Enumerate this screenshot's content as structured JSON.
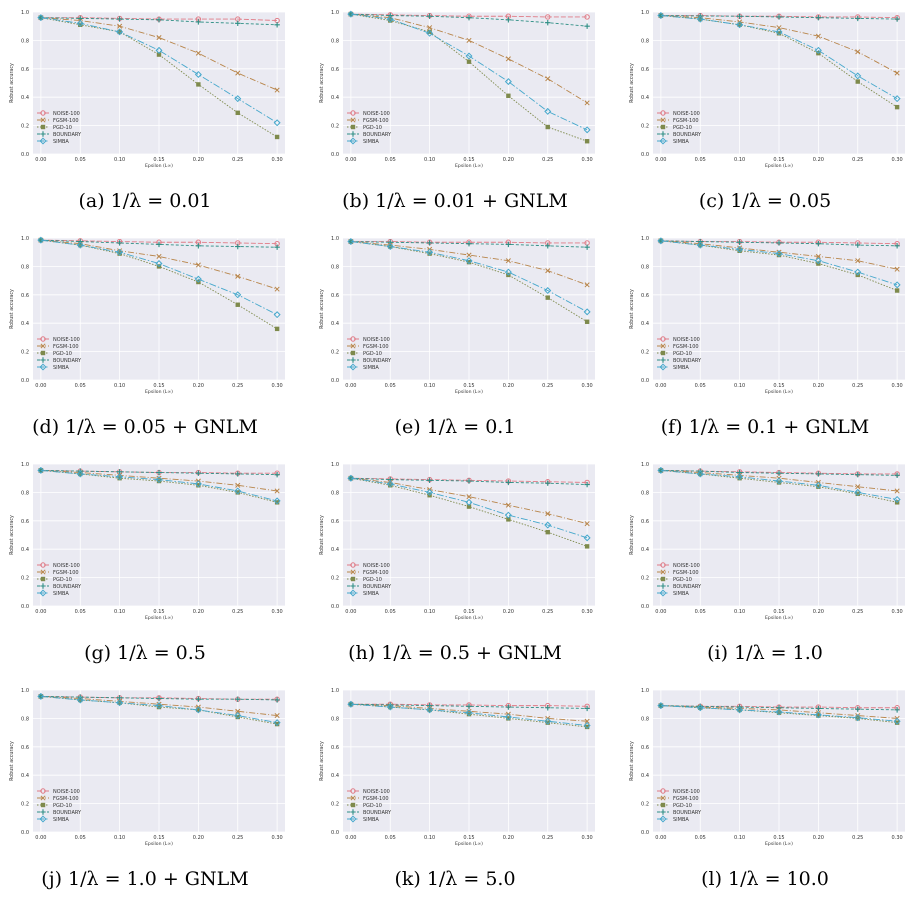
{
  "colors": {
    "plot_background": "#eaeaf2",
    "grid": "#ffffff",
    "NOISE-100": "#e07a85",
    "FGSM-100": "#b8854a",
    "PGD-10": "#7e8a4c",
    "BOUNDARY": "#2f8f85",
    "SIMBA": "#46a8cc"
  },
  "chart_data": [
    {
      "type": "line",
      "caption": "(a) 1/λ = 0.01",
      "xlabel": "Epsilon (L∞)",
      "ylabel": "Robust accuracy",
      "x": [
        0.0,
        0.05,
        0.1,
        0.15,
        0.2,
        0.25,
        0.3
      ],
      "xlim": [
        -0.01,
        0.31
      ],
      "ylim": [
        0.0,
        1.0
      ],
      "grid": true,
      "legend": "lower-left",
      "series": [
        {
          "name": "NOISE-100",
          "marker": "o",
          "values": [
            0.96,
            0.96,
            0.955,
            0.95,
            0.95,
            0.95,
            0.94
          ]
        },
        {
          "name": "FGSM-100",
          "marker": "x",
          "values": [
            0.96,
            0.94,
            0.9,
            0.82,
            0.71,
            0.57,
            0.45
          ]
        },
        {
          "name": "PGD-10",
          "marker": "s",
          "values": [
            0.96,
            0.91,
            0.86,
            0.7,
            0.49,
            0.29,
            0.12
          ]
        },
        {
          "name": "BOUNDARY",
          "marker": "+",
          "values": [
            0.96,
            0.955,
            0.95,
            0.945,
            0.93,
            0.92,
            0.91
          ]
        },
        {
          "name": "SIMBA",
          "marker": "D",
          "values": [
            0.96,
            0.92,
            0.86,
            0.73,
            0.56,
            0.39,
            0.22
          ]
        }
      ]
    },
    {
      "type": "line",
      "caption": "(b) 1/λ = 0.01 + GNLM",
      "xlabel": "Epsilon (L∞)",
      "ylabel": "Robust accuracy",
      "x": [
        0.0,
        0.05,
        0.1,
        0.15,
        0.2,
        0.25,
        0.3
      ],
      "xlim": [
        -0.01,
        0.31
      ],
      "ylim": [
        0.0,
        1.0
      ],
      "grid": true,
      "legend": "lower-left",
      "series": [
        {
          "name": "NOISE-100",
          "marker": "o",
          "values": [
            0.985,
            0.98,
            0.975,
            0.97,
            0.97,
            0.965,
            0.965
          ]
        },
        {
          "name": "FGSM-100",
          "marker": "x",
          "values": [
            0.985,
            0.96,
            0.89,
            0.8,
            0.67,
            0.53,
            0.36
          ]
        },
        {
          "name": "PGD-10",
          "marker": "s",
          "values": [
            0.985,
            0.94,
            0.86,
            0.65,
            0.41,
            0.19,
            0.09
          ]
        },
        {
          "name": "BOUNDARY",
          "marker": "+",
          "values": [
            0.985,
            0.975,
            0.97,
            0.96,
            0.945,
            0.925,
            0.9
          ]
        },
        {
          "name": "SIMBA",
          "marker": "D",
          "values": [
            0.985,
            0.95,
            0.85,
            0.69,
            0.51,
            0.3,
            0.17
          ]
        }
      ]
    },
    {
      "type": "line",
      "caption": "(c) 1/λ = 0.05",
      "xlabel": "Epsilon (L∞)",
      "ylabel": "Robust accuracy",
      "x": [
        0.0,
        0.05,
        0.1,
        0.15,
        0.2,
        0.25,
        0.3
      ],
      "xlim": [
        -0.01,
        0.31
      ],
      "ylim": [
        0.0,
        1.0
      ],
      "grid": true,
      "legend": "lower-left",
      "series": [
        {
          "name": "NOISE-100",
          "marker": "o",
          "values": [
            0.975,
            0.975,
            0.97,
            0.97,
            0.965,
            0.965,
            0.96
          ]
        },
        {
          "name": "FGSM-100",
          "marker": "x",
          "values": [
            0.975,
            0.96,
            0.93,
            0.89,
            0.83,
            0.72,
            0.57
          ]
        },
        {
          "name": "PGD-10",
          "marker": "s",
          "values": [
            0.975,
            0.95,
            0.91,
            0.85,
            0.71,
            0.51,
            0.33
          ]
        },
        {
          "name": "BOUNDARY",
          "marker": "+",
          "values": [
            0.975,
            0.972,
            0.97,
            0.965,
            0.96,
            0.955,
            0.95
          ]
        },
        {
          "name": "SIMBA",
          "marker": "D",
          "values": [
            0.975,
            0.95,
            0.91,
            0.86,
            0.73,
            0.55,
            0.39
          ]
        }
      ]
    },
    {
      "type": "line",
      "caption": "(d) 1/λ = 0.05 + GNLM",
      "xlabel": "Epsilon (L∞)",
      "ylabel": "Robust accuracy",
      "x": [
        0.0,
        0.05,
        0.1,
        0.15,
        0.2,
        0.25,
        0.3
      ],
      "xlim": [
        -0.01,
        0.31
      ],
      "ylim": [
        0.0,
        1.0
      ],
      "grid": true,
      "legend": "lower-left",
      "series": [
        {
          "name": "NOISE-100",
          "marker": "o",
          "values": [
            0.985,
            0.98,
            0.975,
            0.97,
            0.97,
            0.965,
            0.96
          ]
        },
        {
          "name": "FGSM-100",
          "marker": "x",
          "values": [
            0.985,
            0.96,
            0.91,
            0.87,
            0.81,
            0.73,
            0.64
          ]
        },
        {
          "name": "PGD-10",
          "marker": "s",
          "values": [
            0.985,
            0.95,
            0.89,
            0.8,
            0.69,
            0.53,
            0.36
          ]
        },
        {
          "name": "BOUNDARY",
          "marker": "+",
          "values": [
            0.985,
            0.975,
            0.965,
            0.955,
            0.945,
            0.94,
            0.935
          ]
        },
        {
          "name": "SIMBA",
          "marker": "D",
          "values": [
            0.985,
            0.95,
            0.9,
            0.82,
            0.71,
            0.6,
            0.46
          ]
        }
      ]
    },
    {
      "type": "line",
      "caption": "(e) 1/λ = 0.1",
      "xlabel": "Epsilon (L∞)",
      "ylabel": "Robust accuracy",
      "x": [
        0.0,
        0.05,
        0.1,
        0.15,
        0.2,
        0.25,
        0.3
      ],
      "xlim": [
        -0.01,
        0.31
      ],
      "ylim": [
        0.0,
        1.0
      ],
      "grid": true,
      "legend": "lower-left",
      "series": [
        {
          "name": "NOISE-100",
          "marker": "o",
          "values": [
            0.975,
            0.975,
            0.97,
            0.97,
            0.97,
            0.965,
            0.965
          ]
        },
        {
          "name": "FGSM-100",
          "marker": "x",
          "values": [
            0.975,
            0.95,
            0.92,
            0.88,
            0.84,
            0.77,
            0.67
          ]
        },
        {
          "name": "PGD-10",
          "marker": "s",
          "values": [
            0.975,
            0.94,
            0.89,
            0.83,
            0.74,
            0.58,
            0.41
          ]
        },
        {
          "name": "BOUNDARY",
          "marker": "+",
          "values": [
            0.975,
            0.97,
            0.965,
            0.96,
            0.955,
            0.945,
            0.935
          ]
        },
        {
          "name": "SIMBA",
          "marker": "D",
          "values": [
            0.975,
            0.94,
            0.9,
            0.84,
            0.76,
            0.63,
            0.48
          ]
        }
      ]
    },
    {
      "type": "line",
      "caption": "(f) 1/λ = 0.1 + GNLM",
      "xlabel": "Epsilon (L∞)",
      "ylabel": "Robust accuracy",
      "x": [
        0.0,
        0.05,
        0.1,
        0.15,
        0.2,
        0.25,
        0.3
      ],
      "xlim": [
        -0.01,
        0.31
      ],
      "ylim": [
        0.0,
        1.0
      ],
      "grid": true,
      "legend": "lower-left",
      "series": [
        {
          "name": "NOISE-100",
          "marker": "o",
          "values": [
            0.98,
            0.975,
            0.975,
            0.97,
            0.97,
            0.965,
            0.96
          ]
        },
        {
          "name": "FGSM-100",
          "marker": "x",
          "values": [
            0.98,
            0.96,
            0.93,
            0.9,
            0.87,
            0.84,
            0.78
          ]
        },
        {
          "name": "PGD-10",
          "marker": "s",
          "values": [
            0.98,
            0.95,
            0.91,
            0.88,
            0.82,
            0.74,
            0.63
          ]
        },
        {
          "name": "BOUNDARY",
          "marker": "+",
          "values": [
            0.98,
            0.975,
            0.97,
            0.965,
            0.96,
            0.95,
            0.945
          ]
        },
        {
          "name": "SIMBA",
          "marker": "D",
          "values": [
            0.98,
            0.95,
            0.92,
            0.89,
            0.84,
            0.76,
            0.67
          ]
        }
      ]
    },
    {
      "type": "line",
      "caption": "(g) 1/λ = 0.5",
      "xlabel": "Epsilon (L∞)",
      "ylabel": "Robust accuracy",
      "x": [
        0.0,
        0.05,
        0.1,
        0.15,
        0.2,
        0.25,
        0.3
      ],
      "xlim": [
        -0.01,
        0.31
      ],
      "ylim": [
        0.0,
        1.0
      ],
      "grid": true,
      "legend": "lower-left",
      "series": [
        {
          "name": "NOISE-100",
          "marker": "o",
          "values": [
            0.955,
            0.95,
            0.945,
            0.94,
            0.94,
            0.935,
            0.935
          ]
        },
        {
          "name": "FGSM-100",
          "marker": "x",
          "values": [
            0.955,
            0.94,
            0.92,
            0.9,
            0.88,
            0.85,
            0.81
          ]
        },
        {
          "name": "PGD-10",
          "marker": "s",
          "values": [
            0.955,
            0.93,
            0.9,
            0.88,
            0.85,
            0.8,
            0.73
          ]
        },
        {
          "name": "BOUNDARY",
          "marker": "+",
          "values": [
            0.955,
            0.95,
            0.945,
            0.94,
            0.935,
            0.93,
            0.925
          ]
        },
        {
          "name": "SIMBA",
          "marker": "D",
          "values": [
            0.955,
            0.93,
            0.91,
            0.89,
            0.86,
            0.81,
            0.74
          ]
        }
      ]
    },
    {
      "type": "line",
      "caption": "(h) 1/λ = 0.5 + GNLM",
      "xlabel": "Epsilon (L∞)",
      "ylabel": "Robust accuracy",
      "x": [
        0.0,
        0.05,
        0.1,
        0.15,
        0.2,
        0.25,
        0.3
      ],
      "xlim": [
        -0.01,
        0.31
      ],
      "ylim": [
        0.0,
        1.0
      ],
      "grid": true,
      "legend": "lower-left",
      "series": [
        {
          "name": "NOISE-100",
          "marker": "o",
          "values": [
            0.9,
            0.895,
            0.89,
            0.885,
            0.88,
            0.875,
            0.87
          ]
        },
        {
          "name": "FGSM-100",
          "marker": "x",
          "values": [
            0.9,
            0.87,
            0.82,
            0.77,
            0.71,
            0.65,
            0.58
          ]
        },
        {
          "name": "PGD-10",
          "marker": "s",
          "values": [
            0.9,
            0.85,
            0.78,
            0.7,
            0.61,
            0.52,
            0.42
          ]
        },
        {
          "name": "BOUNDARY",
          "marker": "+",
          "values": [
            0.9,
            0.89,
            0.885,
            0.88,
            0.87,
            0.865,
            0.855
          ]
        },
        {
          "name": "SIMBA",
          "marker": "D",
          "values": [
            0.9,
            0.86,
            0.8,
            0.73,
            0.64,
            0.57,
            0.48
          ]
        }
      ]
    },
    {
      "type": "line",
      "caption": "(i) 1/λ = 1.0",
      "xlabel": "Epsilon (L∞)",
      "ylabel": "Robust accuracy",
      "x": [
        0.0,
        0.05,
        0.1,
        0.15,
        0.2,
        0.25,
        0.3
      ],
      "xlim": [
        -0.01,
        0.31
      ],
      "ylim": [
        0.0,
        1.0
      ],
      "grid": true,
      "legend": "lower-left",
      "series": [
        {
          "name": "NOISE-100",
          "marker": "o",
          "values": [
            0.955,
            0.95,
            0.945,
            0.94,
            0.935,
            0.93,
            0.93
          ]
        },
        {
          "name": "FGSM-100",
          "marker": "x",
          "values": [
            0.955,
            0.94,
            0.92,
            0.9,
            0.87,
            0.84,
            0.81
          ]
        },
        {
          "name": "PGD-10",
          "marker": "s",
          "values": [
            0.955,
            0.93,
            0.9,
            0.87,
            0.84,
            0.79,
            0.73
          ]
        },
        {
          "name": "BOUNDARY",
          "marker": "+",
          "values": [
            0.955,
            0.95,
            0.94,
            0.935,
            0.93,
            0.925,
            0.92
          ]
        },
        {
          "name": "SIMBA",
          "marker": "D",
          "values": [
            0.955,
            0.93,
            0.91,
            0.88,
            0.85,
            0.8,
            0.75
          ]
        }
      ]
    },
    {
      "type": "line",
      "caption": "(j) 1/λ = 1.0 + GNLM",
      "xlabel": "Epsilon (L∞)",
      "ylabel": "Robust accuracy",
      "x": [
        0.0,
        0.05,
        0.1,
        0.15,
        0.2,
        0.25,
        0.3
      ],
      "xlim": [
        -0.01,
        0.31
      ],
      "ylim": [
        0.0,
        1.0
      ],
      "grid": true,
      "legend": "lower-left",
      "series": [
        {
          "name": "NOISE-100",
          "marker": "o",
          "values": [
            0.955,
            0.95,
            0.945,
            0.945,
            0.94,
            0.935,
            0.935
          ]
        },
        {
          "name": "FGSM-100",
          "marker": "x",
          "values": [
            0.955,
            0.94,
            0.92,
            0.9,
            0.88,
            0.85,
            0.82
          ]
        },
        {
          "name": "PGD-10",
          "marker": "s",
          "values": [
            0.955,
            0.93,
            0.91,
            0.88,
            0.86,
            0.81,
            0.76
          ]
        },
        {
          "name": "BOUNDARY",
          "marker": "+",
          "values": [
            0.955,
            0.95,
            0.945,
            0.94,
            0.935,
            0.935,
            0.93
          ]
        },
        {
          "name": "SIMBA",
          "marker": "D",
          "values": [
            0.955,
            0.93,
            0.91,
            0.89,
            0.86,
            0.82,
            0.77
          ]
        }
      ]
    },
    {
      "type": "line",
      "caption": "(k) 1/λ = 5.0",
      "xlabel": "Epsilon (L∞)",
      "ylabel": "Robust accuracy",
      "x": [
        0.0,
        0.05,
        0.1,
        0.15,
        0.2,
        0.25,
        0.3
      ],
      "xlim": [
        -0.01,
        0.31
      ],
      "ylim": [
        0.0,
        1.0
      ],
      "grid": true,
      "legend": "lower-left",
      "series": [
        {
          "name": "NOISE-100",
          "marker": "o",
          "values": [
            0.9,
            0.9,
            0.895,
            0.895,
            0.89,
            0.89,
            0.885
          ]
        },
        {
          "name": "FGSM-100",
          "marker": "x",
          "values": [
            0.9,
            0.89,
            0.87,
            0.85,
            0.83,
            0.8,
            0.78
          ]
        },
        {
          "name": "PGD-10",
          "marker": "s",
          "values": [
            0.9,
            0.88,
            0.86,
            0.83,
            0.8,
            0.77,
            0.74
          ]
        },
        {
          "name": "BOUNDARY",
          "marker": "+",
          "values": [
            0.9,
            0.895,
            0.89,
            0.885,
            0.88,
            0.875,
            0.87
          ]
        },
        {
          "name": "SIMBA",
          "marker": "D",
          "values": [
            0.9,
            0.88,
            0.86,
            0.84,
            0.81,
            0.78,
            0.75
          ]
        }
      ]
    },
    {
      "type": "line",
      "caption": "(l) 1/λ = 10.0",
      "xlabel": "Epsilon (L∞)",
      "ylabel": "Robust accuracy",
      "x": [
        0.0,
        0.05,
        0.1,
        0.15,
        0.2,
        0.25,
        0.3
      ],
      "xlim": [
        -0.01,
        0.31
      ],
      "ylim": [
        0.0,
        1.0
      ],
      "grid": true,
      "legend": "lower-left",
      "series": [
        {
          "name": "NOISE-100",
          "marker": "o",
          "values": [
            0.89,
            0.885,
            0.885,
            0.88,
            0.88,
            0.875,
            0.875
          ]
        },
        {
          "name": "FGSM-100",
          "marker": "x",
          "values": [
            0.89,
            0.88,
            0.87,
            0.86,
            0.84,
            0.82,
            0.8
          ]
        },
        {
          "name": "PGD-10",
          "marker": "s",
          "values": [
            0.89,
            0.875,
            0.86,
            0.84,
            0.82,
            0.8,
            0.77
          ]
        },
        {
          "name": "BOUNDARY",
          "marker": "+",
          "values": [
            0.89,
            0.885,
            0.88,
            0.875,
            0.87,
            0.865,
            0.86
          ]
        },
        {
          "name": "SIMBA",
          "marker": "D",
          "values": [
            0.89,
            0.875,
            0.86,
            0.845,
            0.825,
            0.805,
            0.78
          ]
        }
      ]
    }
  ]
}
